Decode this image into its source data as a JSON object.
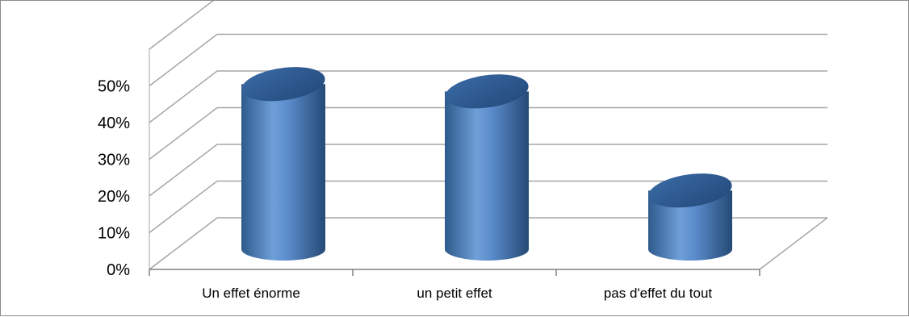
{
  "chart_data": {
    "type": "bar",
    "style": "3d-cylinder",
    "categories": [
      "Un effet énorme",
      "un petit effet",
      "pas d'effet du tout"
    ],
    "values": [
      45,
      43,
      16
    ],
    "ylim": [
      0,
      50
    ],
    "yticks": [
      "0%",
      "10%",
      "20%",
      "30%",
      "40%",
      "50%"
    ],
    "title": "",
    "xlabel": "",
    "ylabel": "",
    "grid": true,
    "legend": "none",
    "colors": {
      "bar": "#4f81bd",
      "bar_dark": "#2e5a8c",
      "bar_light": "#8fb4e3",
      "grid": "#a6a6a6",
      "frame": "#8c8c8c"
    }
  }
}
